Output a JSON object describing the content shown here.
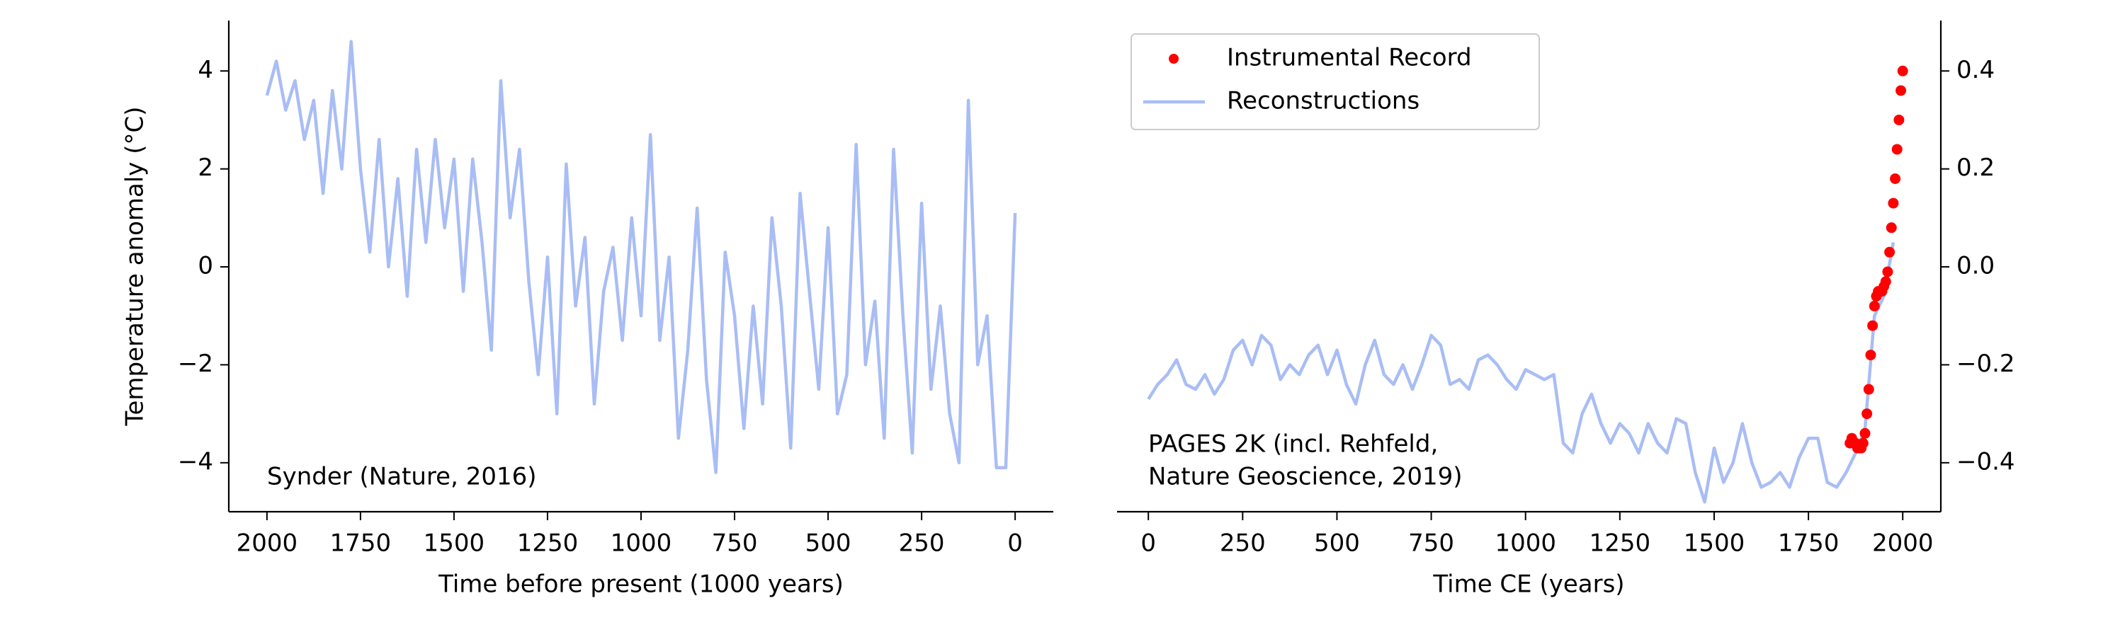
{
  "chart_data": [
    {
      "type": "line",
      "xlabel": "Time before present (1000 years)",
      "ylabel": "Temperature anomaly (°C)",
      "annotation": [
        "Synder (Nature, 2016)"
      ],
      "yaxis": "left",
      "color": "#a9bdf5",
      "xlim": [
        2102,
        -102
      ],
      "ylim": [
        -5,
        5.03
      ],
      "xticks": [
        2000,
        1750,
        1500,
        1250,
        1000,
        750,
        500,
        250,
        0
      ],
      "yticks": [
        {
          "value": -4,
          "label": "−4"
        },
        {
          "value": -2,
          "label": "−2"
        },
        0,
        2,
        4
      ],
      "x": [
        2000,
        1975,
        1950,
        1925,
        1900,
        1875,
        1850,
        1825,
        1800,
        1775,
        1750,
        1725,
        1700,
        1675,
        1650,
        1625,
        1600,
        1575,
        1550,
        1525,
        1500,
        1475,
        1450,
        1425,
        1400,
        1375,
        1350,
        1325,
        1300,
        1275,
        1250,
        1225,
        1200,
        1175,
        1150,
        1125,
        1100,
        1075,
        1050,
        1025,
        1000,
        975,
        950,
        925,
        900,
        875,
        850,
        825,
        800,
        775,
        750,
        725,
        700,
        675,
        650,
        625,
        600,
        575,
        550,
        525,
        500,
        475,
        450,
        425,
        400,
        375,
        350,
        325,
        300,
        275,
        250,
        225,
        200,
        175,
        150,
        125,
        100,
        75,
        50,
        25,
        0
      ],
      "values": [
        3.5,
        4.2,
        3.2,
        3.8,
        2.6,
        3.4,
        1.5,
        3.6,
        2.0,
        4.6,
        2.0,
        0.3,
        2.6,
        0.0,
        1.8,
        -0.6,
        2.4,
        0.5,
        2.6,
        0.8,
        2.2,
        -0.5,
        2.2,
        0.5,
        -1.7,
        3.8,
        1.0,
        2.4,
        -0.3,
        -2.2,
        0.2,
        -3.0,
        2.1,
        -0.8,
        0.6,
        -2.8,
        -0.5,
        0.4,
        -1.5,
        1.0,
        -1.0,
        2.7,
        -1.5,
        0.2,
        -3.5,
        -1.7,
        1.2,
        -2.3,
        -4.2,
        0.3,
        -1.0,
        -3.3,
        -0.8,
        -2.8,
        1.0,
        -0.8,
        -3.7,
        1.5,
        -0.5,
        -2.5,
        0.8,
        -3.0,
        -2.2,
        2.5,
        -2.0,
        -0.7,
        -3.5,
        2.4,
        -1.0,
        -3.8,
        1.3,
        -2.5,
        -0.8,
        -3.0,
        -4.0,
        3.4,
        -2.0,
        -1.0,
        -4.1,
        -4.1,
        1.1
      ]
    },
    {
      "type": "line",
      "xlabel": "Time CE (years)",
      "annotation": [
        "PAGES 2K (incl. Rehfeld,",
        "Nature Geoscience, 2019)"
      ],
      "yaxis": "right",
      "legend": "upper left",
      "xlim": [
        -83,
        2101
      ],
      "ylim": [
        -0.5,
        0.503
      ],
      "xticks": [
        0,
        250,
        500,
        750,
        1000,
        1250,
        1500,
        1750,
        2000
      ],
      "yticks": [
        {
          "value": -0.4,
          "label": "−0.4"
        },
        {
          "value": -0.2,
          "label": "−0.2"
        },
        {
          "value": 0,
          "label": "0.0"
        },
        0.2,
        0.4
      ],
      "series": [
        {
          "name": "Instrumental Record",
          "type": "scatter",
          "color": "#ff0000",
          "x": [
            1860,
            1865,
            1870,
            1875,
            1880,
            1885,
            1890,
            1895,
            1900,
            1905,
            1910,
            1915,
            1920,
            1925,
            1930,
            1935,
            1940,
            1945,
            1950,
            1955,
            1960,
            1965,
            1970,
            1975,
            1980,
            1985,
            1990,
            1995,
            2000
          ],
          "values": [
            -0.36,
            -0.35,
            -0.36,
            -0.36,
            -0.37,
            -0.37,
            -0.37,
            -0.36,
            -0.34,
            -0.3,
            -0.25,
            -0.18,
            -0.12,
            -0.08,
            -0.06,
            -0.05,
            -0.05,
            -0.05,
            -0.04,
            -0.03,
            -0.01,
            0.03,
            0.08,
            0.13,
            0.18,
            0.24,
            0.3,
            0.36,
            0.4
          ]
        },
        {
          "name": "Reconstructions",
          "type": "line",
          "color": "#a9bdf5",
          "x": [
            0,
            25,
            50,
            75,
            100,
            125,
            150,
            175,
            200,
            225,
            250,
            275,
            300,
            325,
            350,
            375,
            400,
            425,
            450,
            475,
            500,
            525,
            550,
            575,
            600,
            625,
            650,
            675,
            700,
            725,
            750,
            775,
            800,
            825,
            850,
            875,
            900,
            925,
            950,
            975,
            1000,
            1025,
            1050,
            1075,
            1100,
            1125,
            1150,
            1175,
            1200,
            1225,
            1250,
            1275,
            1300,
            1325,
            1350,
            1375,
            1400,
            1425,
            1450,
            1475,
            1500,
            1525,
            1550,
            1575,
            1600,
            1625,
            1650,
            1675,
            1700,
            1725,
            1750,
            1775,
            1800,
            1825,
            1850,
            1875,
            1900,
            1925,
            1950,
            1975
          ],
          "values": [
            -0.27,
            -0.24,
            -0.22,
            -0.19,
            -0.24,
            -0.25,
            -0.22,
            -0.26,
            -0.23,
            -0.17,
            -0.15,
            -0.2,
            -0.14,
            -0.16,
            -0.23,
            -0.2,
            -0.22,
            -0.18,
            -0.16,
            -0.22,
            -0.17,
            -0.24,
            -0.28,
            -0.2,
            -0.15,
            -0.22,
            -0.24,
            -0.2,
            -0.25,
            -0.2,
            -0.14,
            -0.16,
            -0.24,
            -0.23,
            -0.25,
            -0.19,
            -0.18,
            -0.2,
            -0.23,
            -0.25,
            -0.21,
            -0.22,
            -0.23,
            -0.22,
            -0.36,
            -0.38,
            -0.3,
            -0.26,
            -0.32,
            -0.36,
            -0.32,
            -0.34,
            -0.38,
            -0.32,
            -0.36,
            -0.38,
            -0.31,
            -0.32,
            -0.42,
            -0.48,
            -0.37,
            -0.44,
            -0.4,
            -0.32,
            -0.4,
            -0.45,
            -0.44,
            -0.42,
            -0.45,
            -0.39,
            -0.35,
            -0.35,
            -0.44,
            -0.45,
            -0.42,
            -0.38,
            -0.33,
            -0.1,
            -0.06,
            0.05
          ]
        }
      ]
    }
  ]
}
